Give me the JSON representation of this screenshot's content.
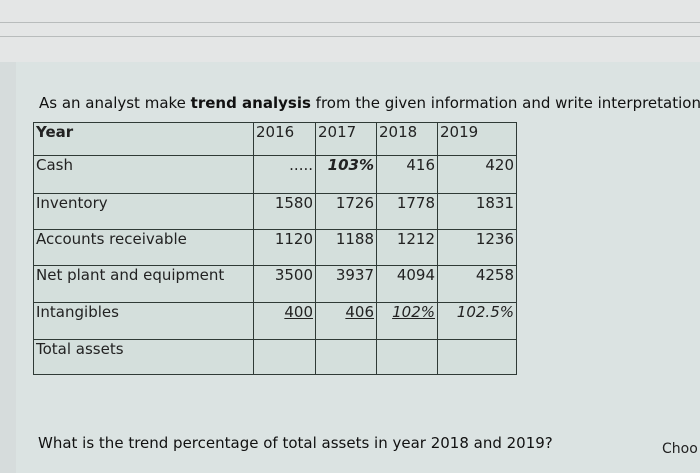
{
  "question": {
    "prefix": "As an analyst make ",
    "bold": "trend analysis",
    "suffix": " from the given information and write interpretation"
  },
  "table": {
    "header": [
      "Year",
      "2016",
      "2017",
      "2018",
      "2019"
    ],
    "rows": [
      [
        "Cash",
        ".....",
        "103%",
        "416",
        "420"
      ],
      [
        "Inventory",
        "1580",
        "1726",
        "1778",
        "1831"
      ],
      [
        "Accounts receivable",
        "1120",
        "1188",
        "1212",
        "1236"
      ],
      [
        "Net plant and equipment",
        "3500",
        "3937",
        "4094",
        "4258"
      ],
      [
        "Intangibles",
        "400",
        "406",
        "102%",
        "102.5%"
      ],
      [
        "Total assets",
        "",
        "",
        "",
        ""
      ]
    ]
  },
  "question2": "What is the trend percentage of total assets in year 2018 and 2019?",
  "choose_label": "Choo"
}
